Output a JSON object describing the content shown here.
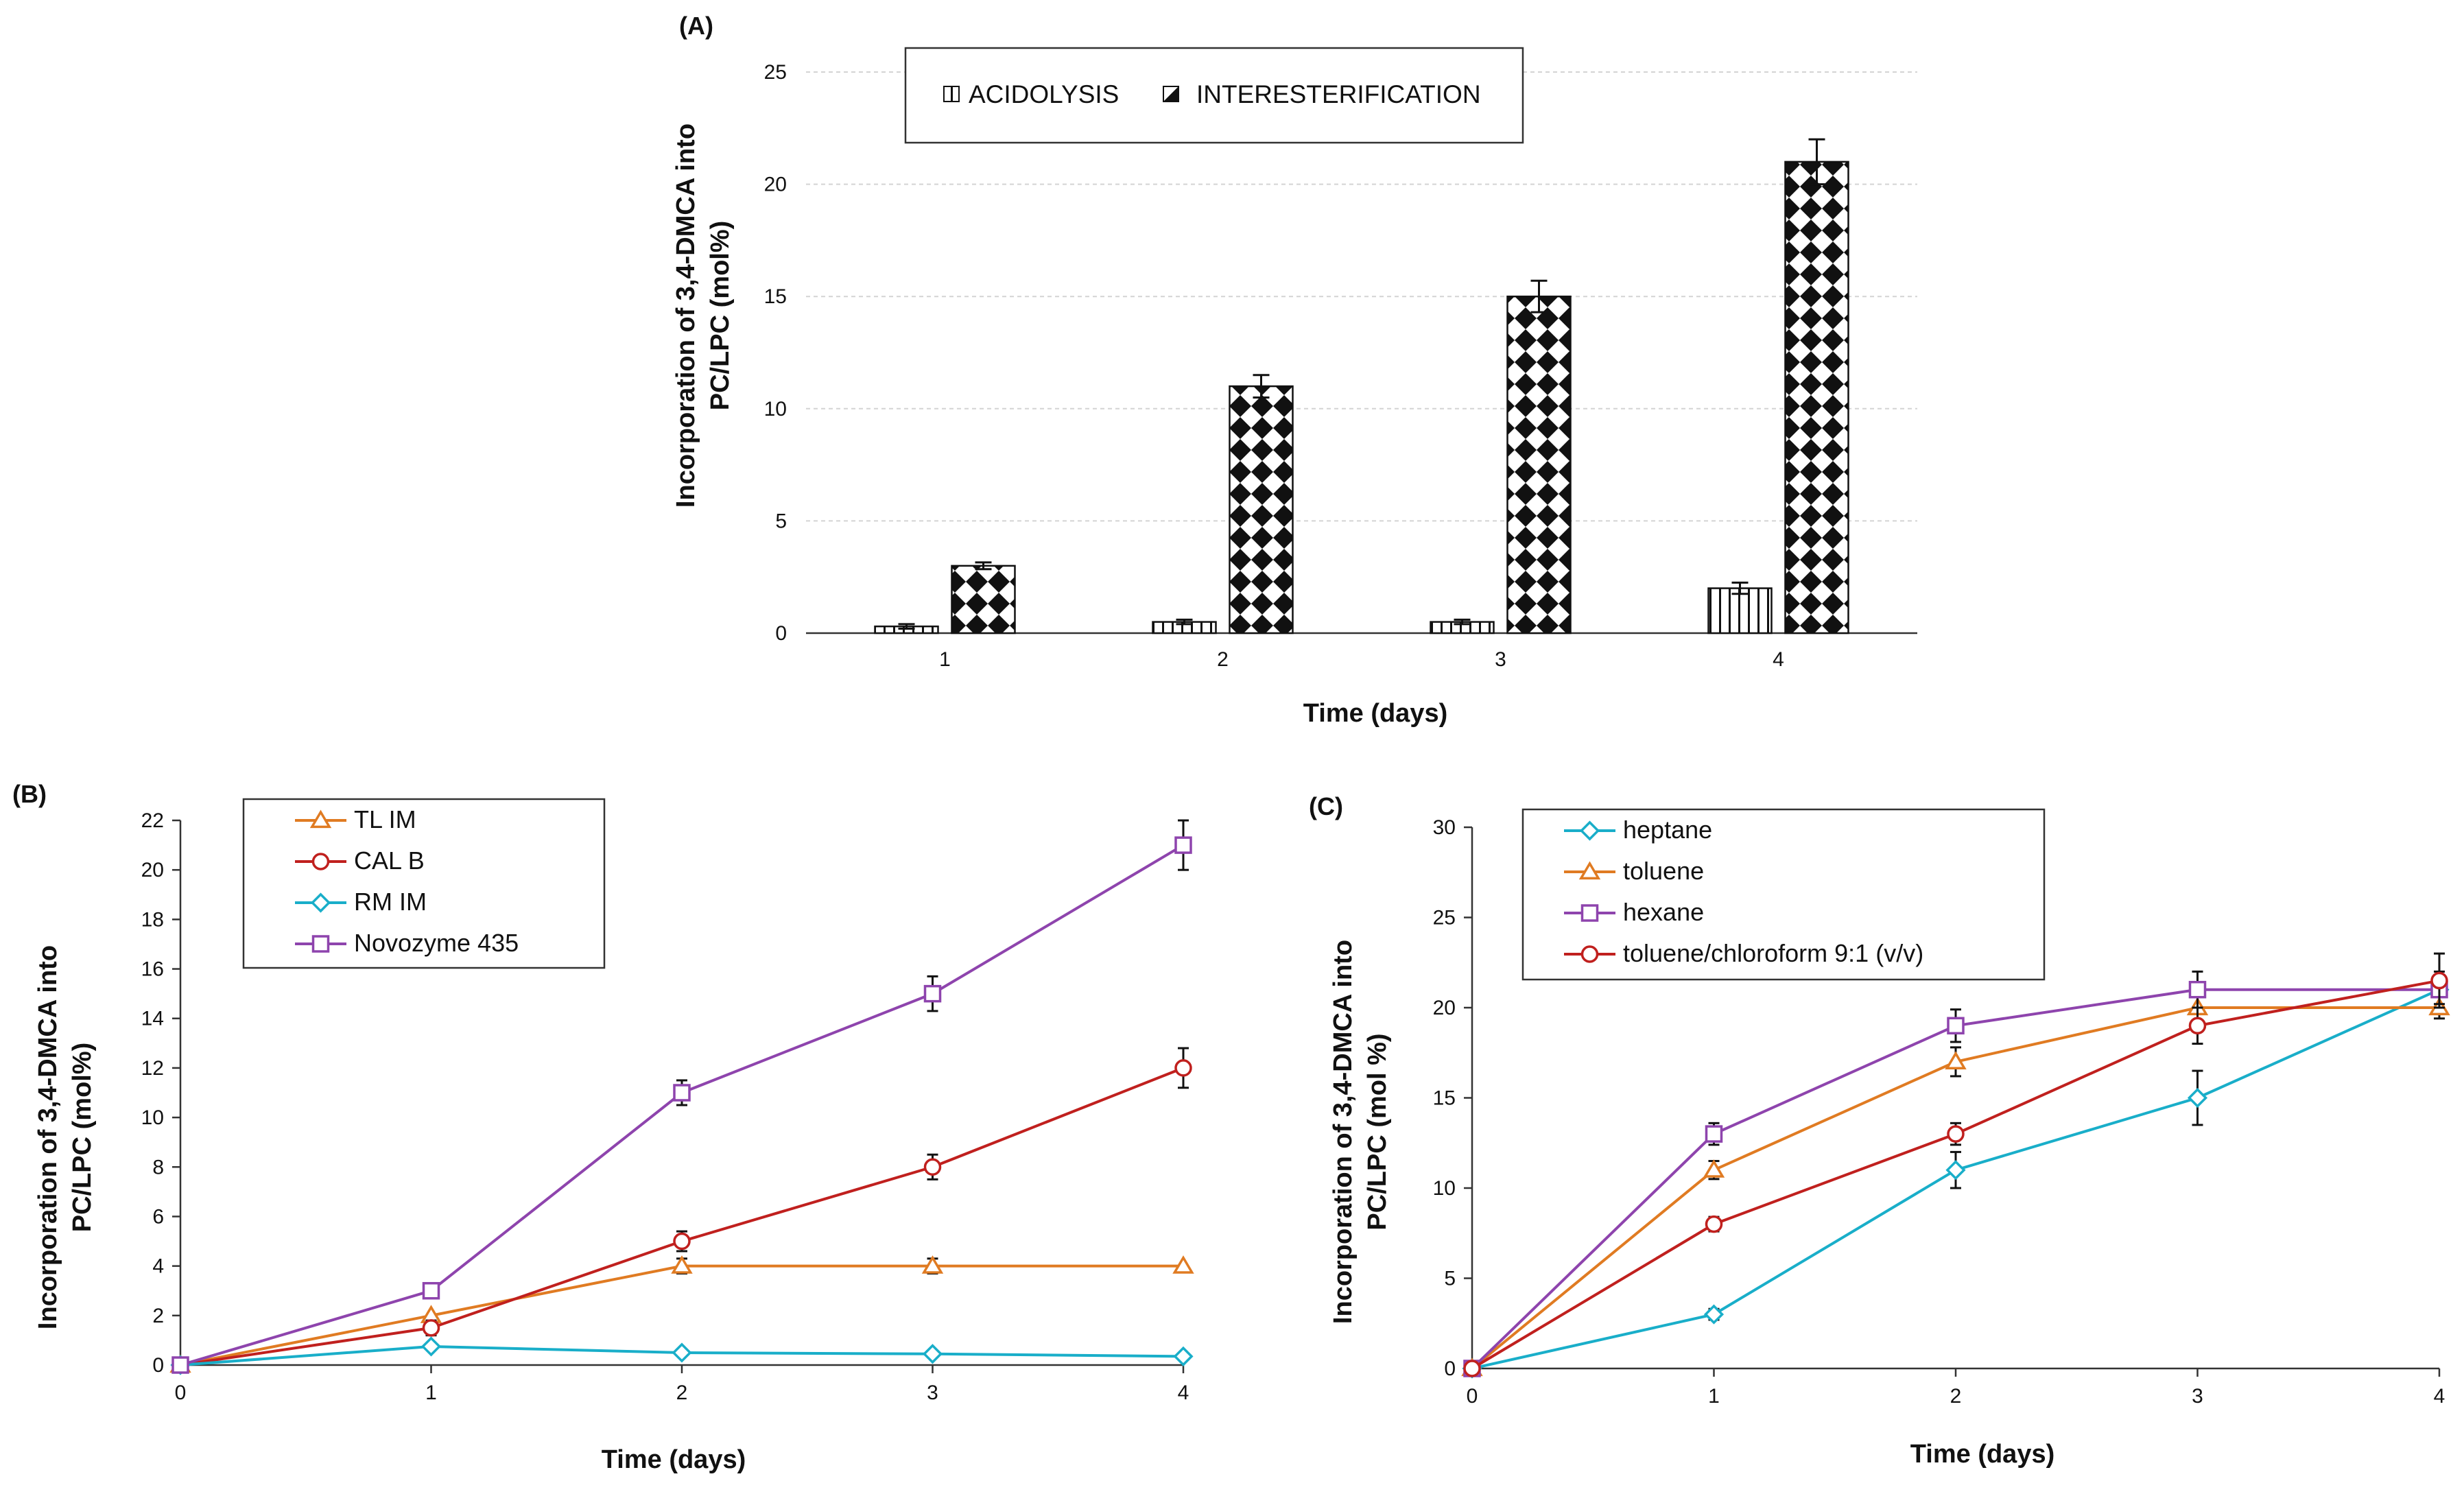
{
  "chart_data": [
    {
      "panel": "(A)",
      "type": "bar",
      "categories": [
        "1",
        "2",
        "3",
        "4"
      ],
      "series": [
        {
          "name": "ACIDOLYSIS",
          "values": [
            0.3,
            0.5,
            0.5,
            2.0
          ],
          "errors": [
            0.1,
            0.1,
            0.1,
            0.25
          ],
          "pattern": "vertical-stripes"
        },
        {
          "name": "INTERESTERIFICATION",
          "values": [
            3.0,
            11.0,
            15.0,
            21.0
          ],
          "errors": [
            0.15,
            0.5,
            0.7,
            1.0
          ],
          "pattern": "diamond-checker"
        }
      ],
      "xlabel": "Time (days)",
      "ylabel": "Incorporation of 3,4-DMCA into PC/LPC (mol%)",
      "ylim": [
        0,
        25
      ],
      "yticks": [
        0,
        5,
        10,
        15,
        20,
        25
      ],
      "grid": true,
      "legend_position": "top"
    },
    {
      "panel": "(B)",
      "type": "line",
      "x": [
        0,
        1,
        2,
        3,
        4
      ],
      "series": [
        {
          "name": "TL IM",
          "values": [
            0,
            2,
            4,
            4,
            4
          ],
          "errors": [
            0,
            0,
            0.3,
            0.3,
            0
          ],
          "color": "#E07B22",
          "marker": "triangle"
        },
        {
          "name": "CAL B",
          "values": [
            0,
            1.5,
            5,
            8,
            12
          ],
          "errors": [
            0,
            0.3,
            0.4,
            0.5,
            0.8
          ],
          "color": "#C0201E",
          "marker": "circle"
        },
        {
          "name": "RM IM",
          "values": [
            0,
            0.75,
            0.5,
            0.45,
            0.35
          ],
          "errors": [
            0,
            0,
            0,
            0,
            0
          ],
          "color": "#19AEC9",
          "marker": "diamond"
        },
        {
          "name": "Novozyme 435",
          "values": [
            0,
            3,
            11,
            15,
            21
          ],
          "errors": [
            0,
            0.3,
            0.5,
            0.7,
            1.0
          ],
          "color": "#8E44AD",
          "marker": "square"
        }
      ],
      "xlabel": "Time (days)",
      "ylabel": "Incorporation of 3,4-DMCA into PC/LPC (mol%)",
      "xlim": [
        0,
        4
      ],
      "ylim": [
        0,
        22
      ],
      "yticks": [
        0,
        2,
        4,
        6,
        8,
        10,
        12,
        14,
        16,
        18,
        20,
        22
      ],
      "grid": false,
      "legend_position": "top-left"
    },
    {
      "panel": "(C)",
      "type": "line",
      "x": [
        0,
        1,
        2,
        3,
        4
      ],
      "series": [
        {
          "name": "heptane",
          "values": [
            0,
            3,
            11,
            15,
            21
          ],
          "errors": [
            0,
            0.3,
            1.0,
            1.5,
            1.0
          ],
          "color": "#19AEC9",
          "marker": "diamond"
        },
        {
          "name": "toluene",
          "values": [
            0,
            11,
            17,
            20,
            20
          ],
          "errors": [
            0,
            0.5,
            0.8,
            0.8,
            0.6
          ],
          "color": "#E07B22",
          "marker": "triangle"
        },
        {
          "name": "hexane",
          "values": [
            0,
            13,
            19,
            21,
            21
          ],
          "errors": [
            0,
            0.6,
            0.9,
            1.0,
            0.8
          ],
          "color": "#8E44AD",
          "marker": "square"
        },
        {
          "name": "toluene/chloroform 9:1 (v/v)",
          "values": [
            0,
            8,
            13,
            19,
            21.5
          ],
          "errors": [
            0,
            0.4,
            0.6,
            1.0,
            1.5
          ],
          "color": "#C0201E",
          "marker": "circle"
        }
      ],
      "xlabel": "Time (days)",
      "ylabel": "Incorporation of 3,4-DMCA into PC/LPC (mol %)",
      "xlim": [
        0,
        4
      ],
      "ylim": [
        0,
        30
      ],
      "yticks": [
        0,
        5,
        10,
        15,
        20,
        25,
        30
      ],
      "grid": false,
      "legend_position": "top-left"
    }
  ],
  "panels": {
    "a": {
      "label": "(A)",
      "ylabel_line1": "Incorporation of 3,4-DMCA into",
      "ylabel_line2": "PC/LPC (mol%)",
      "xlabel": "Time (days)"
    },
    "b": {
      "label": "(B)",
      "ylabel_line1": "Incorporation of 3,4-DMCA into",
      "ylabel_line2": "PC/LPC (mol%)",
      "xlabel": "Time (days)"
    },
    "c": {
      "label": "(C)",
      "ylabel_line1": "Incorporation of 3,4-DMCA into",
      "ylabel_line2": "PC/LPC (mol %)",
      "xlabel": "Time (days)"
    }
  }
}
